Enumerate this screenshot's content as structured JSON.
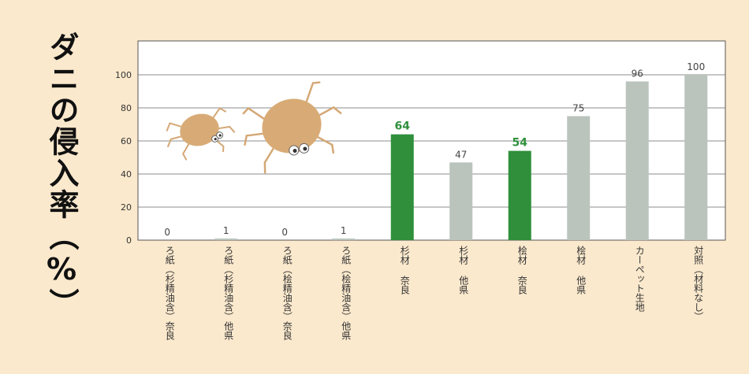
{
  "chart_data": {
    "type": "bar",
    "ylabel": "ダニの侵入率（%）",
    "ylim": [
      0,
      120
    ],
    "yticks": [
      0,
      20,
      40,
      60,
      80,
      100
    ],
    "categories": [
      "ろ紙（杉精油含）奈良",
      "ろ紙（杉精油含）他県",
      "ろ紙（桧精油含）奈良",
      "ろ紙（桧精油含）他県",
      "杉材 奈良",
      "杉材 他県",
      "桧材 奈良",
      "桧材 他県",
      "カーペット生地",
      "対照（材料なし）"
    ],
    "values": [
      0,
      1,
      0,
      1,
      64,
      47,
      54,
      75,
      96,
      100
    ],
    "highlight": [
      false,
      false,
      false,
      false,
      true,
      false,
      true,
      false,
      false,
      false
    ],
    "colors": {
      "normal": "#bac4bc",
      "highlight": "#2f8f3b"
    },
    "grid": true
  },
  "decorations": [
    "mite-small-illustration",
    "mite-large-illustration"
  ]
}
